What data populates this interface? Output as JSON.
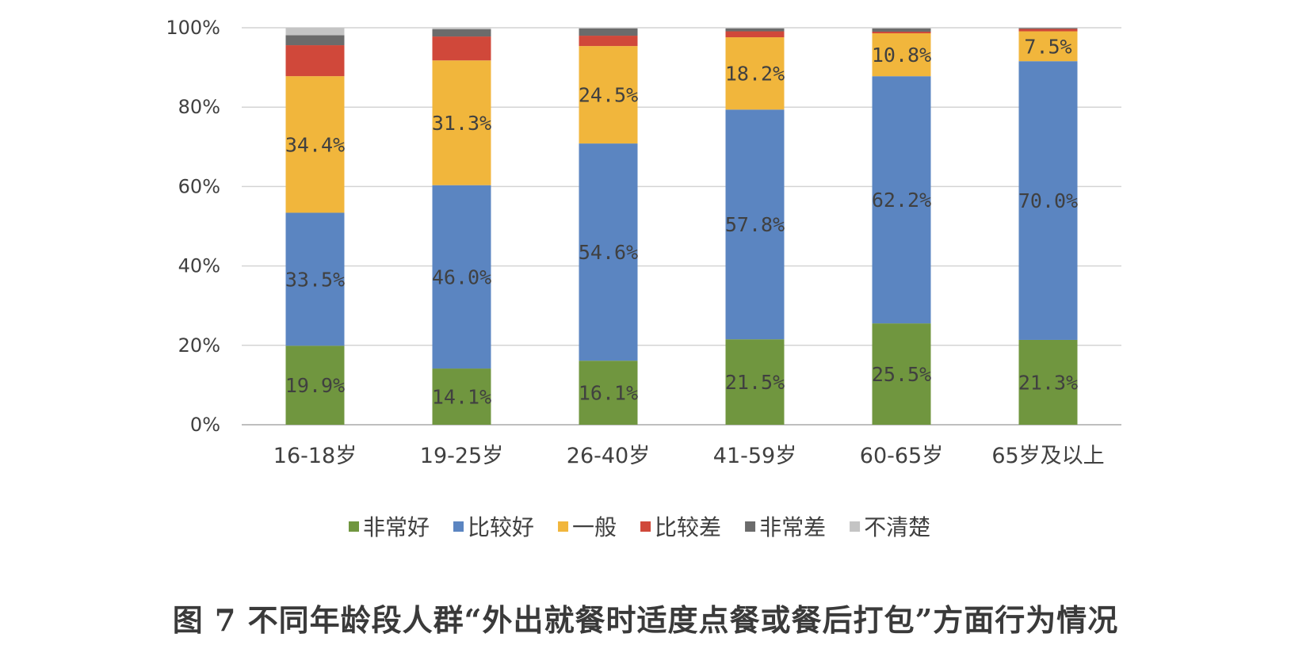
{
  "chart_data": {
    "type": "bar",
    "stacked": true,
    "percent_stacked": true,
    "categories": [
      "16-18岁",
      "19-25岁",
      "26-40岁",
      "41-59岁",
      "60-65岁",
      "65岁及以上"
    ],
    "series": [
      {
        "name": "非常好",
        "color": "#70963f",
        "values": [
          19.9,
          14.1,
          16.1,
          21.5,
          25.5,
          21.3
        ],
        "labels": [
          "19.9%",
          "14.1%",
          "16.1%",
          "21.5%",
          "25.5%",
          "21.3%"
        ]
      },
      {
        "name": "比较好",
        "color": "#5b85c1",
        "values": [
          33.5,
          46.0,
          54.6,
          57.8,
          62.2,
          70.0
        ],
        "labels": [
          "33.5%",
          "46.0%",
          "54.6%",
          "57.8%",
          "62.2%",
          "70.0%"
        ]
      },
      {
        "name": "一般",
        "color": "#f1b63c",
        "values": [
          34.4,
          31.3,
          24.5,
          18.2,
          10.8,
          7.5
        ],
        "labels": [
          "34.4%",
          "31.3%",
          "24.5%",
          "18.2%",
          "10.8%",
          "7.5%"
        ]
      },
      {
        "name": "比较差",
        "color": "#d0483a",
        "values": [
          7.8,
          6.0,
          2.6,
          1.5,
          0.4,
          0.6
        ],
        "labels": null
      },
      {
        "name": "非常差",
        "color": "#6b6b6b",
        "values": [
          2.5,
          1.8,
          1.8,
          0.7,
          0.8,
          0.2
        ],
        "labels": null
      },
      {
        "name": "不清楚",
        "color": "#c4c4c4",
        "values": [
          1.9,
          0.4,
          0.2,
          0.2,
          0.2,
          0.1
        ],
        "labels": null
      }
    ],
    "ylim": [
      0,
      100
    ],
    "y_ticks": [
      "0%",
      "20%",
      "40%",
      "60%",
      "80%",
      "100%"
    ],
    "y_tick_values": [
      0,
      20,
      40,
      60,
      80,
      100
    ],
    "grid": true,
    "legend_position": "bottom",
    "caption": "图 7 不同年龄段人群“外出就餐时适度点餐或餐后打包”方面行为情况"
  }
}
